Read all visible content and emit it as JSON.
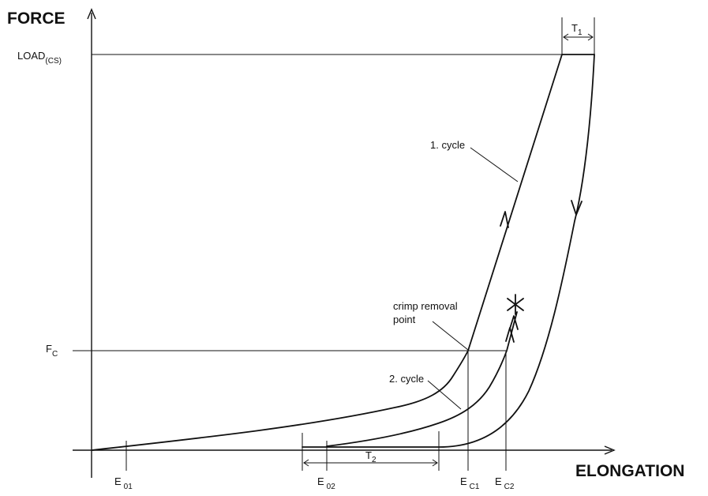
{
  "axes": {
    "y_title": "FORCE",
    "x_title": "ELONGATION"
  },
  "y_labels": {
    "load": {
      "main": "LOAD",
      "sub": "(CS)"
    },
    "fc": {
      "main": "F",
      "sub": "C"
    }
  },
  "x_labels": {
    "e01": {
      "main": "E",
      "sub": "01"
    },
    "e02": {
      "main": "E",
      "sub": "02"
    },
    "ec1": {
      "main": "E",
      "sub": "C1"
    },
    "ec2": {
      "main": "E",
      "sub": "C2"
    }
  },
  "intervals": {
    "t1": {
      "main": "T",
      "sub": "1"
    },
    "t2": {
      "main": "T",
      "sub": "2"
    }
  },
  "annotations": {
    "cycle1": "1. cycle",
    "cycle2": "2. cycle",
    "crimp_line1": "crimp removal",
    "crimp_line2": "point"
  }
}
